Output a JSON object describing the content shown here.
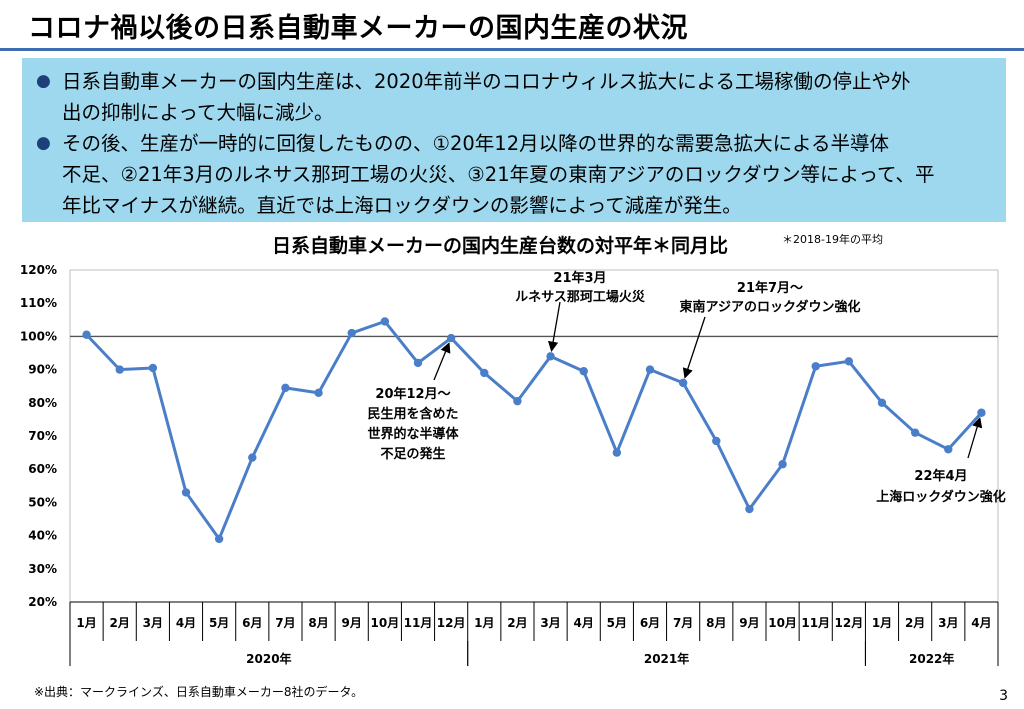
{
  "page_title": "コロナ禍以後の日系自動車メーカーの国内生産の状況",
  "bullets": [
    {
      "lines": [
        "日系自動車メーカーの国内生産は、2020年前半のコロナウィルス拡大による工場稼働の停止や外",
        "出の抑制によって大幅に減少。"
      ]
    },
    {
      "lines": [
        "その後、生産が一時的に回復したものの、①20年12月以降の世界的な需要急拡大による半導体",
        "不足、②21年3月のルネサス那珂工場の火災、③21年夏の東南アジアのロックダウン等によって、平",
        "年比マイナスが継続。直近では上海ロックダウンの影響によって減産が発生。"
      ]
    }
  ],
  "chart_data": {
    "type": "line",
    "title": "日系自動車メーカーの国内生産台数の対平年＊同月比",
    "title_note": "＊2018-19年の平均",
    "ylim": [
      20,
      120
    ],
    "yticks": [
      "20%",
      "30%",
      "40%",
      "50%",
      "60%",
      "70%",
      "80%",
      "90%",
      "100%",
      "110%",
      "120%"
    ],
    "reference_line": 100,
    "categories": [
      "1月",
      "2月",
      "3月",
      "4月",
      "5月",
      "6月",
      "7月",
      "8月",
      "9月",
      "10月",
      "11月",
      "12月",
      "1月",
      "2月",
      "3月",
      "4月",
      "5月",
      "6月",
      "7月",
      "8月",
      "9月",
      "10月",
      "11月",
      "12月",
      "1月",
      "2月",
      "3月",
      "4月"
    ],
    "year_groups": [
      {
        "label": "2020年",
        "start": 0,
        "count": 12
      },
      {
        "label": "2021年",
        "start": 12,
        "count": 12
      },
      {
        "label": "2022年",
        "start": 24,
        "count": 4
      }
    ],
    "series": [
      {
        "name": "対平年同月比",
        "color": "#4a7ec8",
        "values": [
          100.5,
          90,
          90.5,
          53,
          39,
          63.5,
          84.5,
          83,
          101,
          104.5,
          92,
          99.5,
          89,
          80.5,
          94,
          89.5,
          65,
          90,
          86,
          68.5,
          48,
          61.5,
          91,
          92.5,
          80,
          71,
          66,
          77
        ]
      }
    ],
    "annotations": [
      {
        "lines": [
          "20年12月～",
          "民生用を含めた",
          "世界的な半導体",
          "不足の発生"
        ],
        "point": 11
      },
      {
        "lines": [
          "21年3月",
          "ルネサス那珂工場火災"
        ],
        "point": 14
      },
      {
        "lines": [
          "21年7月～",
          "東南アジアのロックダウン強化"
        ],
        "point": 18
      },
      {
        "lines": [
          "22年4月",
          "上海ロックダウン強化"
        ],
        "point": 27
      }
    ]
  },
  "footer": {
    "source": "※出典：マークラインズ、日系自動車メーカー8社のデータ。",
    "page_number": "3"
  }
}
